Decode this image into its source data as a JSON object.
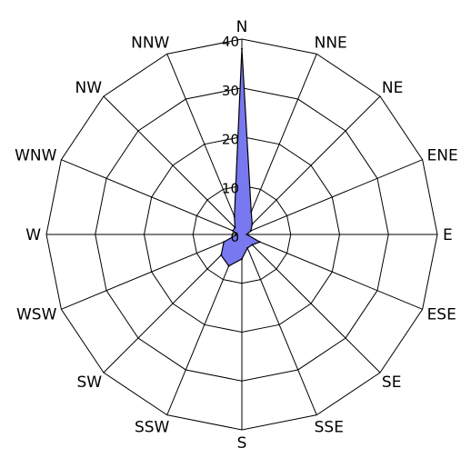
{
  "chart_data": {
    "type": "radar",
    "title": "",
    "directions": [
      "N",
      "NNE",
      "NE",
      "ENE",
      "E",
      "ESE",
      "SE",
      "SSE",
      "S",
      "SSW",
      "SW",
      "WSW",
      "W",
      "WNW",
      "NW",
      "NNW"
    ],
    "rings": [
      0,
      10,
      20,
      30,
      40
    ],
    "rlim": [
      0,
      40
    ],
    "grid": true,
    "series": [
      {
        "values": [
          38,
          5,
          3,
          2,
          1,
          4,
          3,
          3,
          5,
          7,
          6,
          4,
          1,
          2,
          2,
          4
        ],
        "color": "#7878f0",
        "stroke": "#000000"
      }
    ]
  }
}
